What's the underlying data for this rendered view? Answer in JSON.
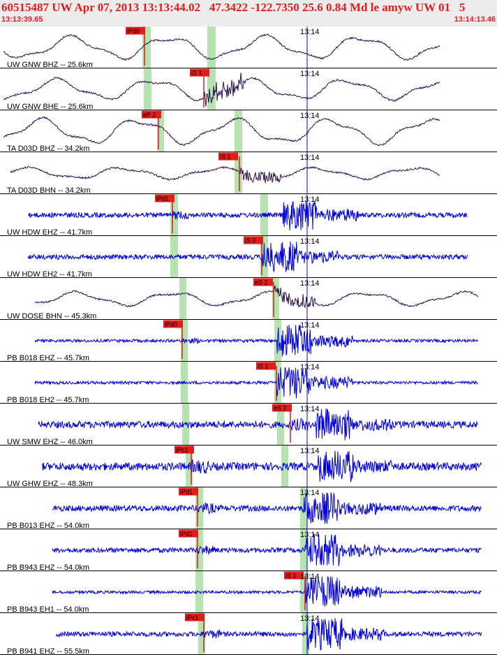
{
  "header": {
    "title": "60515487 UW Apr 07, 2013 13:13:44.02   47.3422 -122.7350 25.6 0.84 Md le amyw UW 01   5",
    "start_time": "13:13:39.65",
    "end_time": "13:14:13.46"
  },
  "colors": {
    "title": "#e41c1c",
    "pick_box": "#e41c1c",
    "pick_line": "#d00000",
    "phase_band": "#b7e3b0",
    "trace_broadband": "#2a0f4a",
    "trace_short_period": "#0000dd",
    "cursor_line": "#0000cc",
    "separator": "#000000"
  },
  "chart_data": {
    "type": "line",
    "title": "60515487 UW Apr 07, 2013 13:13:44.02   47.3422 -122.7350 25.6 0.84 Md le amyw UW 01   5",
    "x_range": [
      "13:13:39.65",
      "13:14:13.46"
    ],
    "minute_tick_label": "13:14",
    "traces": [
      {
        "label": "UW GNW BHZ -- 25.6km",
        "pick_label": "iPd0",
        "kind": "broadband"
      },
      {
        "label": "UW GNW BHE -- 25.6km",
        "pick_label": "iS 1",
        "kind": "broadband"
      },
      {
        "label": "TA D03D BHZ -- 34.2km",
        "pick_label": "eP 2",
        "kind": "broadband"
      },
      {
        "label": "TA D03D BHN -- 34.2km",
        "pick_label": "iS 1",
        "kind": "broadband"
      },
      {
        "label": "UW HDW EHZ -- 41.7km",
        "pick_label": "iPd1",
        "kind": "short"
      },
      {
        "label": "UW HDW EH2 -- 41.7km",
        "pick_label": "iS 0",
        "kind": "short"
      },
      {
        "label": "UW DOSE BHN -- 45.3km",
        "pick_label": "eS 2",
        "kind": "broadband"
      },
      {
        "label": "PB B018 EHZ -- 45.7km",
        "pick_label": "iPd0",
        "kind": "short"
      },
      {
        "label": "PB B018 EH2 -- 45.7km",
        "pick_label": "iS 1",
        "kind": "short"
      },
      {
        "label": "UW SMW EHZ -- 46.0km",
        "pick_label": "eS 2",
        "kind": "short"
      },
      {
        "label": "UW GHW EHZ -- 48.3km",
        "pick_label": "iPc1",
        "kind": "short"
      },
      {
        "label": "PB B013 EHZ -- 54.0km",
        "pick_label": "iPd1",
        "kind": "short"
      },
      {
        "label": "PB B943 EHZ -- 54.0km",
        "pick_label": "iPd1",
        "kind": "short"
      },
      {
        "label": "PB B943 EH1 -- 54.0km",
        "pick_label": "iS 1",
        "kind": "short"
      },
      {
        "label": "PB B941 EHZ -- 55.5km",
        "pick_label": "iPc1",
        "kind": "short"
      }
    ]
  }
}
